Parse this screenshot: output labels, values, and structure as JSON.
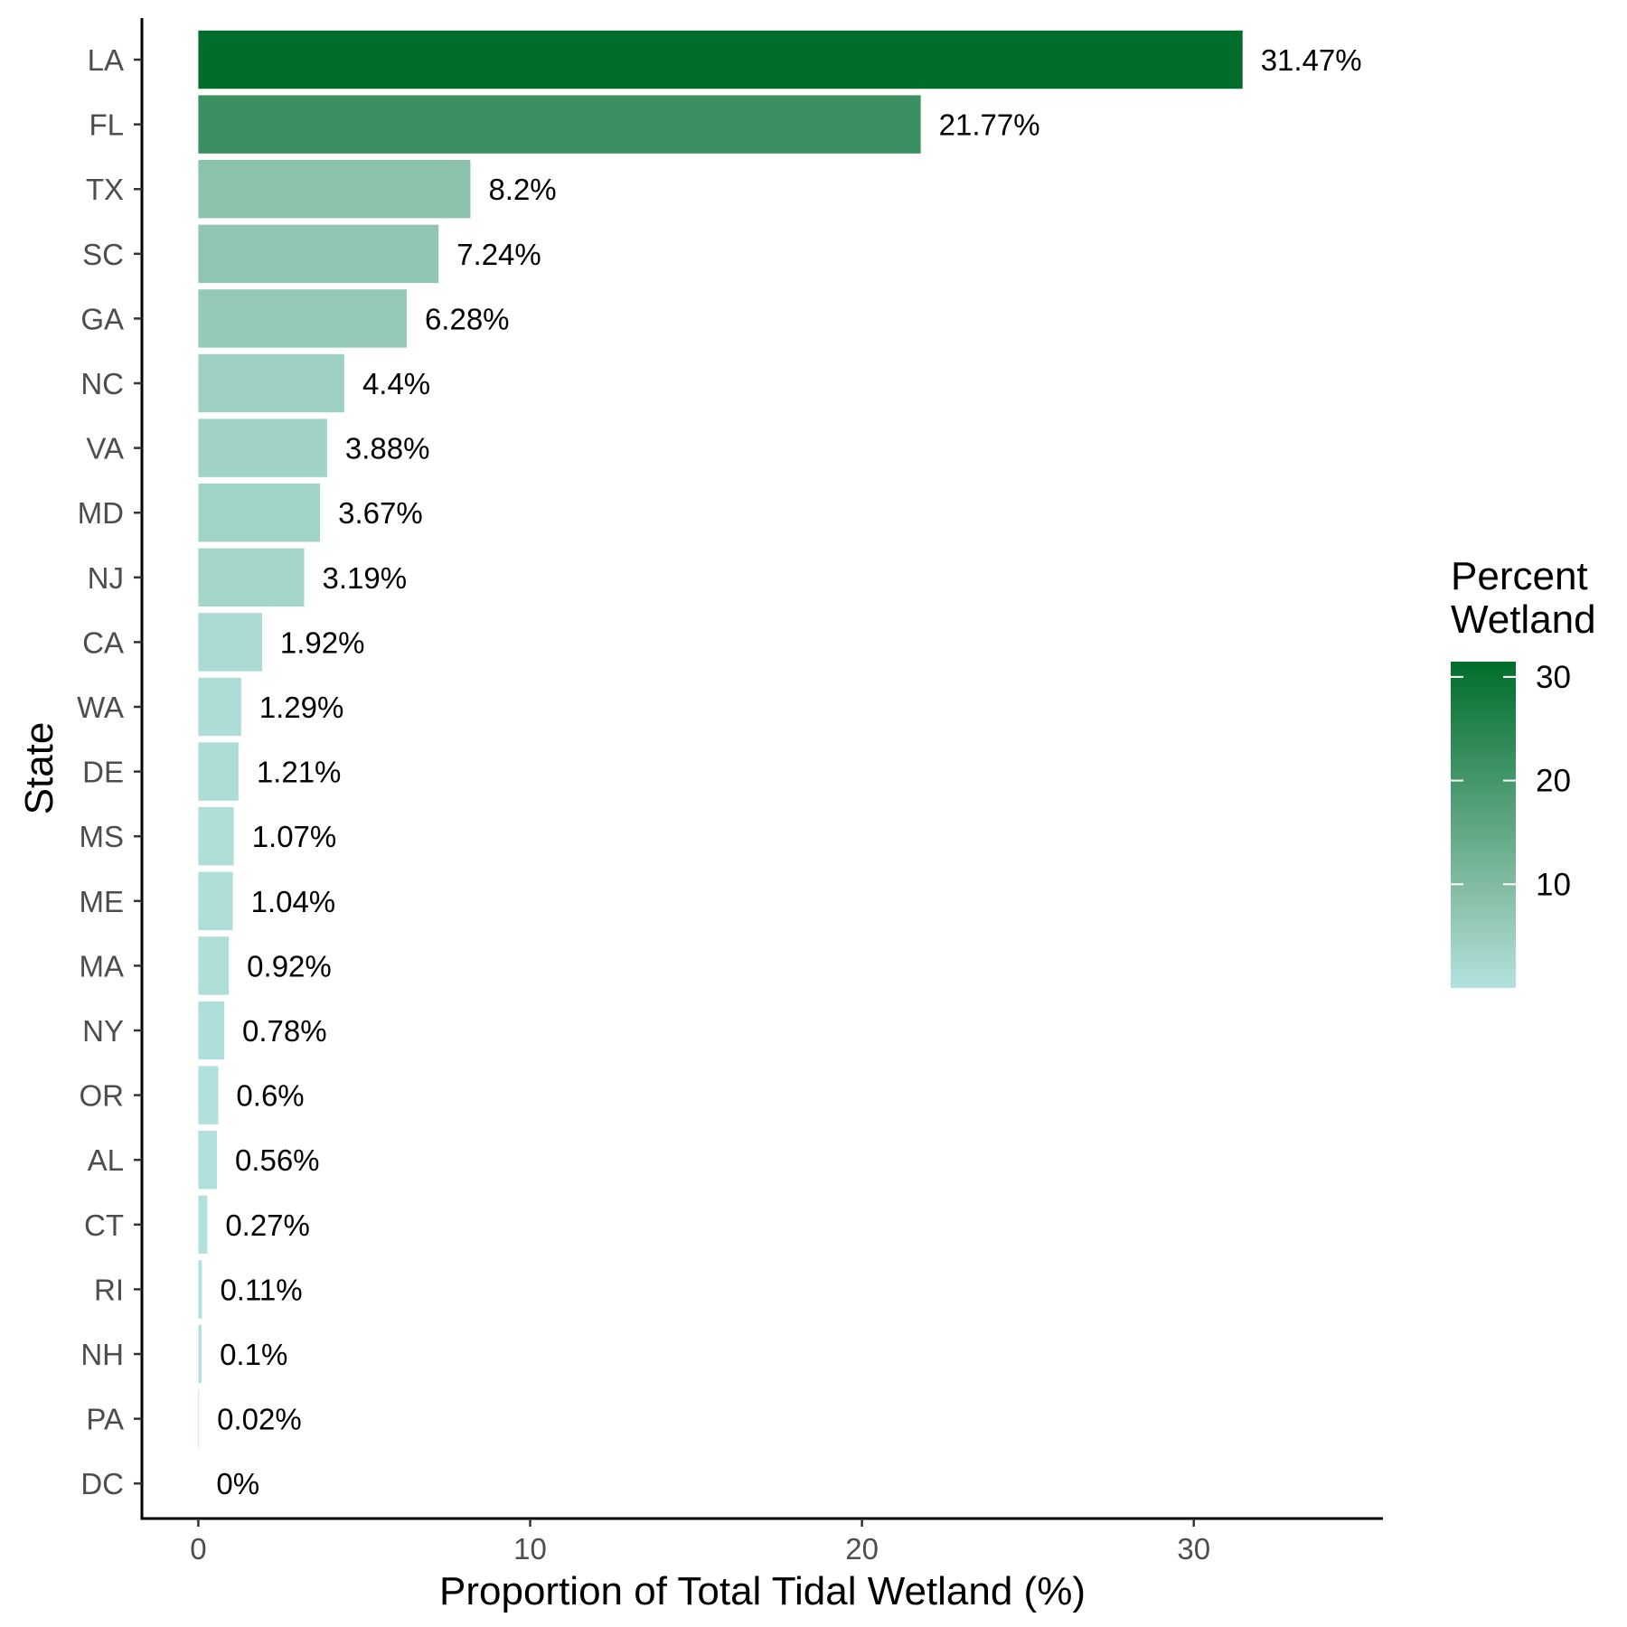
{
  "chart_data": {
    "type": "bar",
    "orientation": "horizontal",
    "categories": [
      "LA",
      "FL",
      "TX",
      "SC",
      "GA",
      "NC",
      "VA",
      "MD",
      "NJ",
      "CA",
      "WA",
      "DE",
      "MS",
      "ME",
      "MA",
      "NY",
      "OR",
      "AL",
      "CT",
      "RI",
      "NH",
      "PA",
      "DC"
    ],
    "values": [
      31.47,
      21.77,
      8.2,
      7.24,
      6.28,
      4.4,
      3.88,
      3.67,
      3.19,
      1.92,
      1.29,
      1.21,
      1.07,
      1.04,
      0.92,
      0.78,
      0.6,
      0.56,
      0.27,
      0.11,
      0.1,
      0.02,
      0
    ],
    "data_labels": [
      "31.47%",
      "21.77%",
      "8.2%",
      "7.24%",
      "6.28%",
      "4.4%",
      "3.88%",
      "3.67%",
      "3.19%",
      "1.92%",
      "1.29%",
      "1.21%",
      "1.07%",
      "1.04%",
      "0.92%",
      "0.78%",
      "0.6%",
      "0.56%",
      "0.27%",
      "0.11%",
      "0.1%",
      "0.02%",
      "0%"
    ],
    "xlabel": "Proportion of Total Tidal Wetland (%)",
    "ylabel": "State",
    "xlim": [
      -1.7,
      35.7
    ],
    "xticks": [
      0,
      10,
      20,
      30
    ],
    "xtick_labels": [
      "0",
      "10",
      "20",
      "30"
    ],
    "grid": false,
    "legend": {
      "title_lines": [
        "Percent",
        "Wetland"
      ],
      "placement": "right",
      "type": "colorbar",
      "range": [
        0,
        31.47
      ],
      "ticks": [
        10,
        20,
        30
      ],
      "tick_labels": [
        "10",
        "20",
        "30"
      ]
    },
    "colors": {
      "low": "#b3e2df",
      "mid": "#8dc3ad",
      "high": "#006d2c"
    }
  }
}
